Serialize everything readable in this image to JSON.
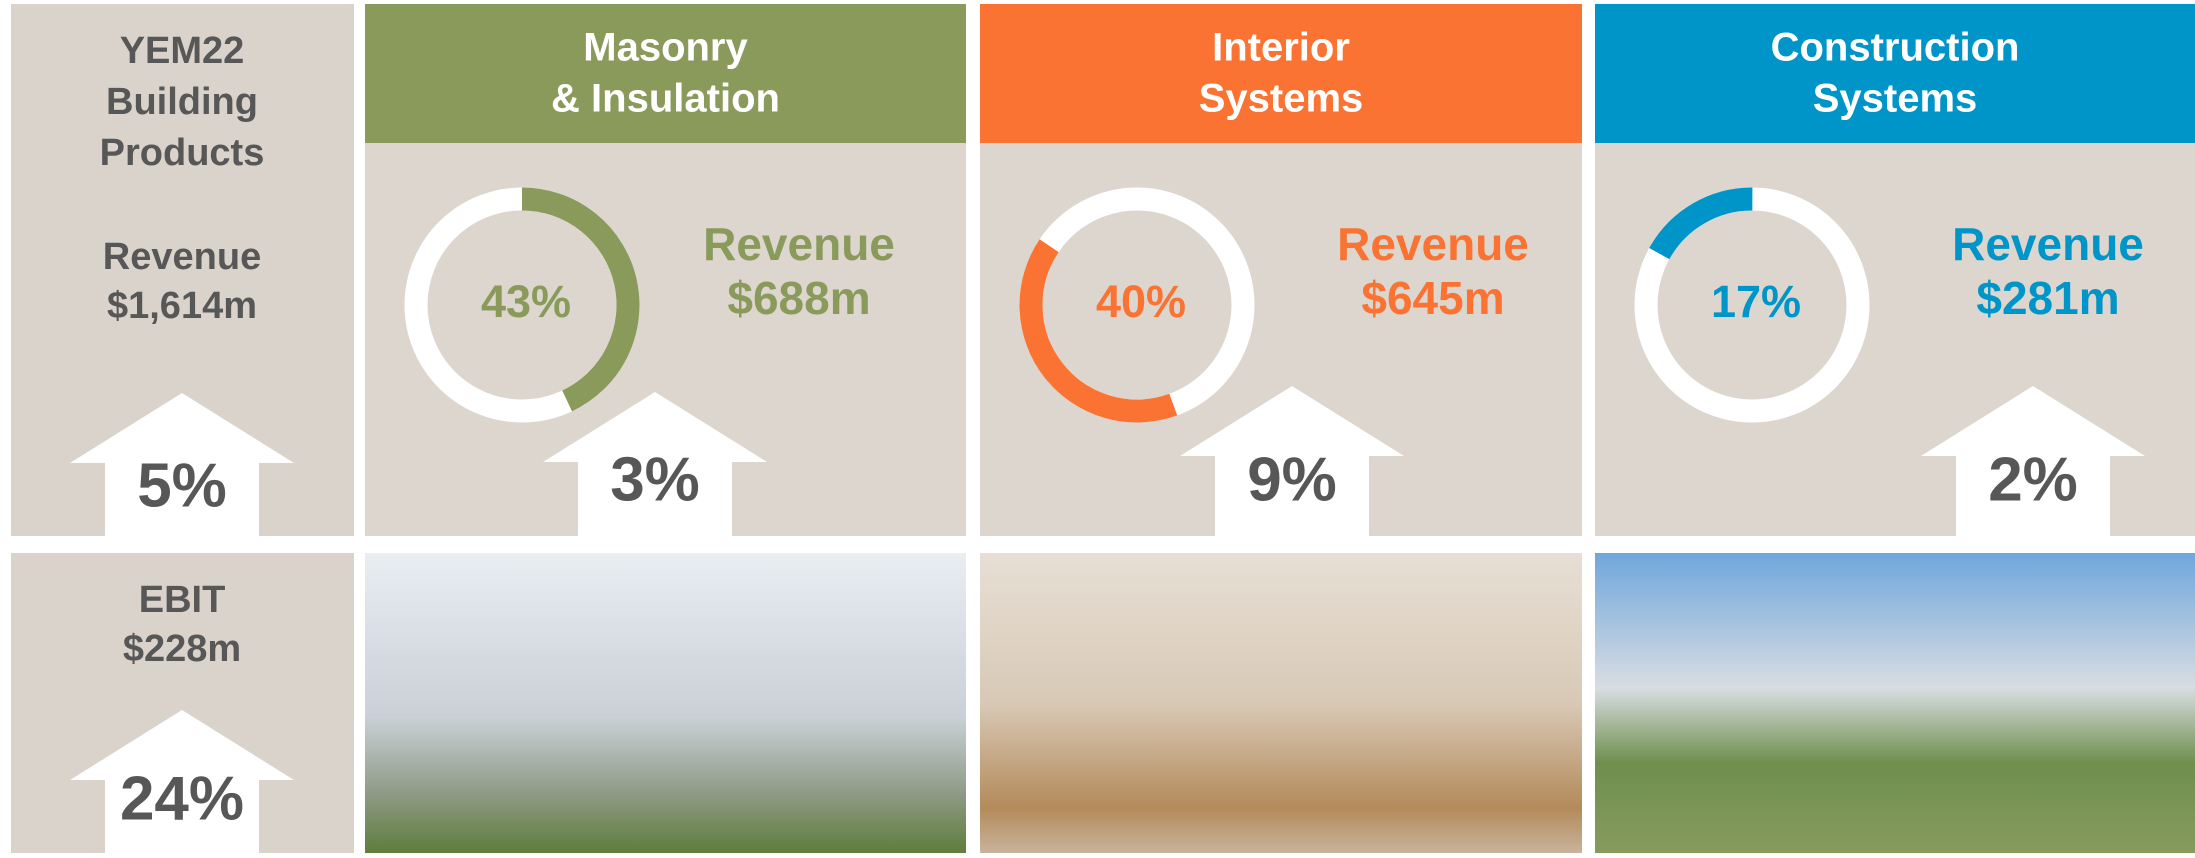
{
  "summary": {
    "title_lines": [
      "YEM22",
      "Building",
      "Products"
    ],
    "revenue_label": "Revenue",
    "revenue_value": "$1,614m",
    "revenue_growth": "5%",
    "ebit_label": "EBIT",
    "ebit_value": "$228m",
    "ebit_growth": "24%"
  },
  "segments": [
    {
      "name_lines": [
        "Masonry",
        "& Insulation"
      ],
      "color": "#8a9a5b",
      "share": 43,
      "share_label": "43%",
      "revenue_label": "Revenue",
      "revenue_value": "$688m",
      "growth": "3%"
    },
    {
      "name_lines": [
        "Interior",
        "Systems"
      ],
      "color": "#fa7332",
      "share": 40,
      "share_label": "40%",
      "revenue_label": "Revenue",
      "revenue_value": "$645m",
      "growth": "9%"
    },
    {
      "name_lines": [
        "Construction",
        "Systems"
      ],
      "color": "#0095c8",
      "share": 17,
      "share_label": "17%",
      "revenue_label": "Revenue",
      "revenue_value": "$281m",
      "growth": "2%"
    }
  ]
}
